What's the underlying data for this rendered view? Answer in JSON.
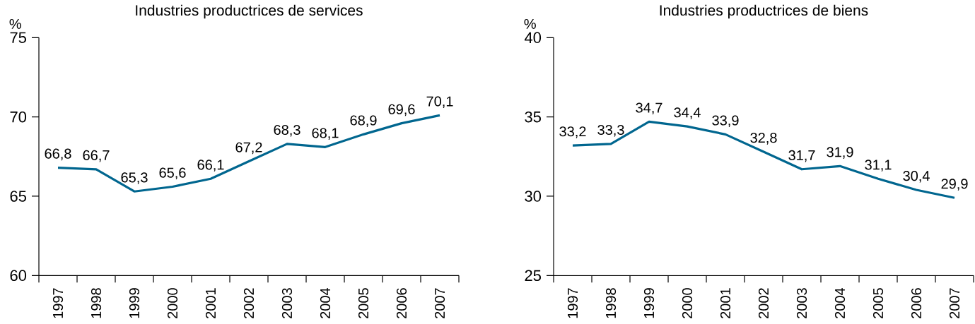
{
  "chart_data": [
    {
      "type": "line",
      "title": "Industries productrices de services",
      "ylabel": "%",
      "categories": [
        "1997",
        "1998",
        "1999",
        "2000",
        "2001",
        "2002",
        "2003",
        "2004",
        "2005",
        "2006",
        "2007"
      ],
      "values": [
        66.8,
        66.7,
        65.3,
        65.6,
        66.1,
        67.2,
        68.3,
        68.1,
        68.9,
        69.6,
        70.1
      ],
      "value_labels": [
        "66,8",
        "66,7",
        "65,3",
        "65,6",
        "66,1",
        "67,2",
        "68,3",
        "68,1",
        "68,9",
        "69,6",
        "70,1"
      ],
      "color": "#00668f",
      "ylim": [
        60,
        75
      ],
      "yticks": [
        60,
        65,
        70,
        75
      ]
    },
    {
      "type": "line",
      "title": "Industries productrices de biens",
      "ylabel": "%",
      "categories": [
        "1997",
        "1998",
        "1999",
        "2000",
        "2001",
        "2002",
        "2003",
        "2004",
        "2005",
        "2006",
        "2007"
      ],
      "values": [
        33.2,
        33.3,
        34.7,
        34.4,
        33.9,
        32.8,
        31.7,
        31.9,
        31.1,
        30.4,
        29.9
      ],
      "value_labels": [
        "33,2",
        "33,3",
        "34,7",
        "34,4",
        "33,9",
        "32,8",
        "31,7",
        "31,9",
        "31,1",
        "30,4",
        "29,9"
      ],
      "color": "#00668f",
      "ylim": [
        25,
        40
      ],
      "yticks": [
        25,
        30,
        35,
        40
      ]
    }
  ]
}
